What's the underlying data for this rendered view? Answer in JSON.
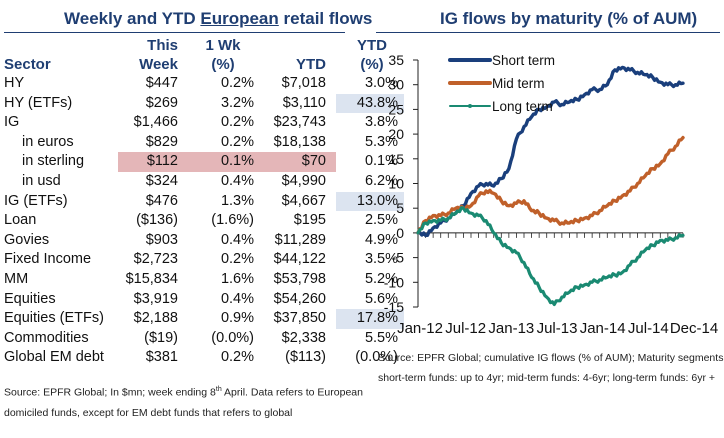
{
  "table_panel": {
    "title_pre": "Weekly and YTD ",
    "title_underlined": "European",
    "title_post": " retail flows",
    "headers": {
      "sector": "Sector",
      "this_week_1": "This",
      "this_week_2": "Week",
      "wk_1": "1 Wk",
      "wk_2": "(%)",
      "ytd": "YTD",
      "ytd_pct_1": "YTD",
      "ytd_pct_2": "(%)"
    },
    "rows": [
      {
        "sector": "HY",
        "this_week": "$447",
        "wk_pct": "0.2%",
        "ytd": "$7,018",
        "ytd_pct": "3.0%",
        "indent": false,
        "highlight": ""
      },
      {
        "sector": "HY (ETFs)",
        "this_week": "$269",
        "wk_pct": "3.2%",
        "ytd": "$3,110",
        "ytd_pct": "43.8%",
        "indent": false,
        "highlight": "ytd_pct"
      },
      {
        "sector": "IG",
        "this_week": "$1,466",
        "wk_pct": "0.2%",
        "ytd": "$23,743",
        "ytd_pct": "3.8%",
        "indent": false,
        "highlight": ""
      },
      {
        "sector": "in euros",
        "this_week": "$829",
        "wk_pct": "0.2%",
        "ytd": "$18,138",
        "ytd_pct": "5.3%",
        "indent": true,
        "highlight": ""
      },
      {
        "sector": "in sterling",
        "this_week": "$112",
        "wk_pct": "0.1%",
        "ytd": "$70",
        "ytd_pct": "0.1%",
        "indent": true,
        "highlight": "row"
      },
      {
        "sector": "in usd",
        "this_week": "$324",
        "wk_pct": "0.4%",
        "ytd": "$4,990",
        "ytd_pct": "6.2%",
        "indent": true,
        "highlight": ""
      },
      {
        "sector": "IG (ETFs)",
        "this_week": "$476",
        "wk_pct": "1.3%",
        "ytd": "$4,667",
        "ytd_pct": "13.0%",
        "indent": false,
        "highlight": "ytd_pct"
      },
      {
        "sector": "Loan",
        "this_week": "($136)",
        "wk_pct": "(1.6%)",
        "ytd": "$195",
        "ytd_pct": "2.5%",
        "indent": false,
        "highlight": ""
      },
      {
        "sector": "Govies",
        "this_week": "$903",
        "wk_pct": "0.4%",
        "ytd": "$11,289",
        "ytd_pct": "4.9%",
        "indent": false,
        "highlight": ""
      },
      {
        "sector": "Fixed Income",
        "this_week": "$2,723",
        "wk_pct": "0.2%",
        "ytd": "$44,122",
        "ytd_pct": "3.5%",
        "indent": false,
        "highlight": ""
      },
      {
        "sector": "MM",
        "this_week": "$15,834",
        "wk_pct": "1.6%",
        "ytd": "$53,798",
        "ytd_pct": "5.2%",
        "indent": false,
        "highlight": ""
      },
      {
        "sector": "Equities",
        "this_week": "$3,919",
        "wk_pct": "0.4%",
        "ytd": "$54,260",
        "ytd_pct": "5.6%",
        "indent": false,
        "highlight": ""
      },
      {
        "sector": "Equities (ETFs)",
        "this_week": "$2,188",
        "wk_pct": "0.9%",
        "ytd": "$37,850",
        "ytd_pct": "17.8%",
        "indent": false,
        "highlight": "ytd_pct"
      },
      {
        "sector": "Commodities",
        "this_week": "($19)",
        "wk_pct": "(0.0%)",
        "ytd": "$2,338",
        "ytd_pct": "5.5%",
        "indent": false,
        "highlight": ""
      },
      {
        "sector": "Global EM debt",
        "this_week": "$381",
        "wk_pct": "0.2%",
        "ytd": "($113)",
        "ytd_pct": "(0.0%)",
        "indent": false,
        "highlight": ""
      }
    ],
    "note_line1_pre": "Source: EPFR Global; In $mn; week ending 8",
    "note_line1_sup": "th",
    "note_line1_post": " April. Data refers to European",
    "note_line2": "domiciled funds, except for EM debt funds that refers to global"
  },
  "chart_panel": {
    "note_line1": "Source: EPFR Global; cumulative IG flows (% of AUM); Maturity segments:",
    "note_line2": "short-term funds: up to 4yr; mid-term funds: 4-6yr; long-term funds: 6yr +"
  },
  "chart_data": {
    "type": "line",
    "title": "IG flows by maturity (% of AUM)",
    "xlabel": "",
    "ylabel": "",
    "x_tick_labels": [
      "Jan-12",
      "Jul-12",
      "Jan-13",
      "Jul-13",
      "Jan-14",
      "Jul-14",
      "Dec-14"
    ],
    "y_ticks": [
      35,
      30,
      25,
      20,
      15,
      10,
      5,
      0,
      -5,
      -10,
      -15
    ],
    "ylim": [
      -15,
      35
    ],
    "grid": false,
    "legend_position": "top-left",
    "x_unit": "months since Jan-12",
    "xlim": [
      0,
      35
    ],
    "colors": {
      "short": "#1a3f7c",
      "mid": "#c0602a",
      "long": "#1a8a72"
    },
    "series": [
      {
        "name": "Short term",
        "key": "short",
        "x": [
          0,
          1,
          2,
          3,
          4,
          5,
          6,
          7,
          8,
          9,
          10,
          11,
          12,
          13,
          14,
          15,
          16,
          17,
          18,
          19,
          20,
          21,
          22,
          23,
          24,
          25,
          26,
          27,
          28,
          29,
          30,
          31,
          32,
          33,
          34,
          35
        ],
        "values": [
          0,
          -0.5,
          1,
          2,
          3,
          4,
          5.5,
          8,
          9.5,
          10,
          9.5,
          11,
          13,
          19,
          21.5,
          23.5,
          25,
          25.5,
          26.5,
          26,
          26.5,
          27,
          28,
          29,
          29,
          30,
          33,
          33.5,
          33,
          32.5,
          32,
          31.5,
          30.5,
          30,
          30,
          30.3
        ]
      },
      {
        "name": "Mid term",
        "key": "mid",
        "x": [
          0,
          1,
          2,
          3,
          4,
          5,
          6,
          7,
          8,
          9,
          10,
          11,
          12,
          13,
          14,
          15,
          16,
          17,
          18,
          19,
          20,
          21,
          22,
          23,
          24,
          25,
          26,
          27,
          28,
          29,
          30,
          31,
          32,
          33,
          34,
          35
        ],
        "values": [
          0,
          2.5,
          3.5,
          3.5,
          4,
          5,
          5,
          5.5,
          7.5,
          8.5,
          8,
          6.5,
          5.5,
          6,
          6.5,
          4.5,
          4,
          3,
          2.5,
          2,
          2,
          2.5,
          3,
          3.5,
          4.5,
          5.5,
          6.5,
          7.5,
          8.5,
          10,
          11.5,
          13,
          14,
          16,
          17.5,
          19.3
        ]
      },
      {
        "name": "Long term",
        "key": "long",
        "x": [
          0,
          1,
          2,
          3,
          4,
          5,
          6,
          7,
          8,
          9,
          10,
          11,
          12,
          13,
          14,
          15,
          16,
          17,
          18,
          19,
          20,
          21,
          22,
          23,
          24,
          25,
          26,
          27,
          28,
          29,
          30,
          31,
          32,
          33,
          34,
          35
        ],
        "values": [
          0,
          2,
          2.5,
          2.5,
          3,
          4,
          5,
          4,
          3.5,
          2.5,
          0,
          -2,
          -3,
          -4,
          -6,
          -9,
          -11,
          -13,
          -14.5,
          -13,
          -12,
          -11,
          -10.5,
          -10,
          -9.5,
          -9,
          -8.5,
          -8,
          -6.5,
          -5,
          -3.5,
          -2.5,
          -1.5,
          -1.5,
          -1,
          -0.5
        ]
      }
    ]
  }
}
